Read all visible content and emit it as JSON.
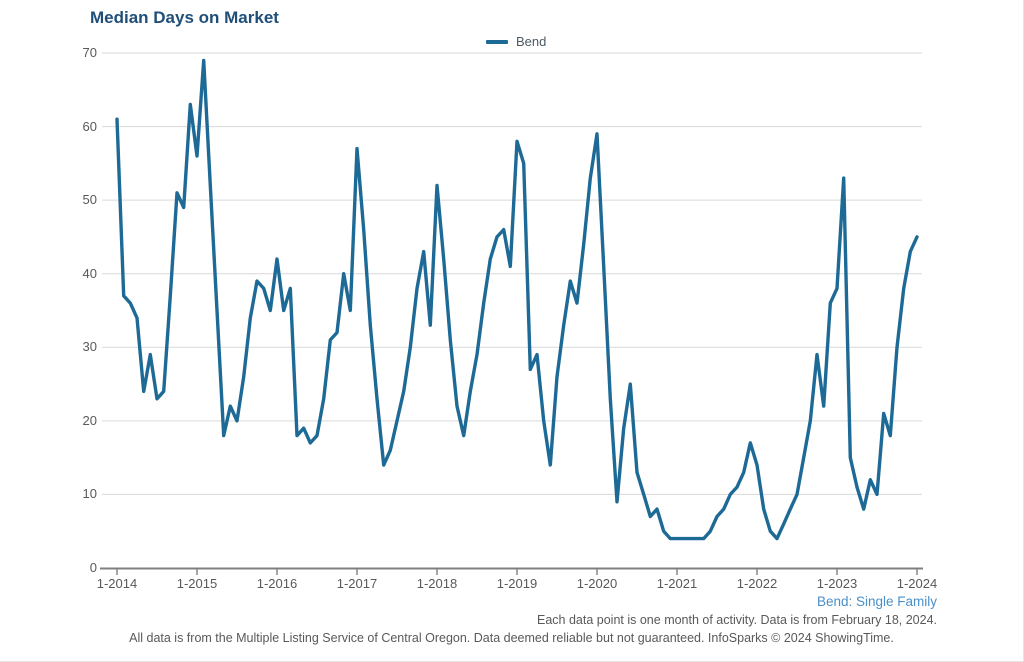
{
  "title": "Median Days on Market",
  "legend": {
    "label": "Bend"
  },
  "annotations": {
    "series_note": "Bend: Single Family",
    "data_note": "Each data point is one month of activity. Data is from February 18, 2024.",
    "footer": "All data is from the Multiple Listing Service of Central Oregon. Data deemed reliable but not guaranteed. InfoSparks © 2024 ShowingTime."
  },
  "colors": {
    "line": "#1E6A96",
    "title": "#1F4E79",
    "note_blue": "#4A8FC7",
    "text_gray": "#595959",
    "grid": "#D9D9D9",
    "axis": "#808080"
  },
  "chart_data": {
    "type": "line",
    "title": "Median Days on Market",
    "x_start_label": "1-2014",
    "x_end_label": "1-2024",
    "months_per_point": 1,
    "x_tick_labels": [
      "1-2014",
      "1-2015",
      "1-2016",
      "1-2017",
      "1-2018",
      "1-2019",
      "1-2020",
      "1-2021",
      "1-2022",
      "1-2023",
      "1-2024"
    ],
    "y_ticks": [
      0,
      10,
      20,
      30,
      40,
      50,
      60,
      70
    ],
    "ylim": [
      0,
      70
    ],
    "grid": "horizontal",
    "legend_position": "top-center",
    "series": [
      {
        "name": "Bend",
        "values": [
          61,
          37,
          36,
          34,
          24,
          29,
          23,
          24,
          37,
          51,
          49,
          63,
          56,
          69,
          52,
          35,
          18,
          22,
          20,
          26,
          34,
          39,
          38,
          35,
          42,
          35,
          38,
          18,
          19,
          17,
          18,
          23,
          31,
          32,
          40,
          35,
          57,
          46,
          33,
          23,
          14,
          16,
          20,
          24,
          30,
          38,
          43,
          33,
          52,
          42,
          31,
          22,
          18,
          24,
          29,
          36,
          42,
          45,
          46,
          41,
          58,
          55,
          27,
          29,
          20,
          14,
          26,
          33,
          39,
          36,
          44,
          53,
          59,
          41,
          23,
          9,
          19,
          25,
          13,
          10,
          7,
          8,
          5,
          4,
          4,
          4,
          4,
          4,
          4,
          5,
          7,
          8,
          10,
          11,
          13,
          17,
          14,
          8,
          5,
          4,
          6,
          8,
          10,
          15,
          20,
          29,
          22,
          36,
          38,
          53,
          15,
          11,
          8,
          12,
          10,
          21,
          18,
          30,
          38,
          43,
          45
        ]
      }
    ]
  }
}
